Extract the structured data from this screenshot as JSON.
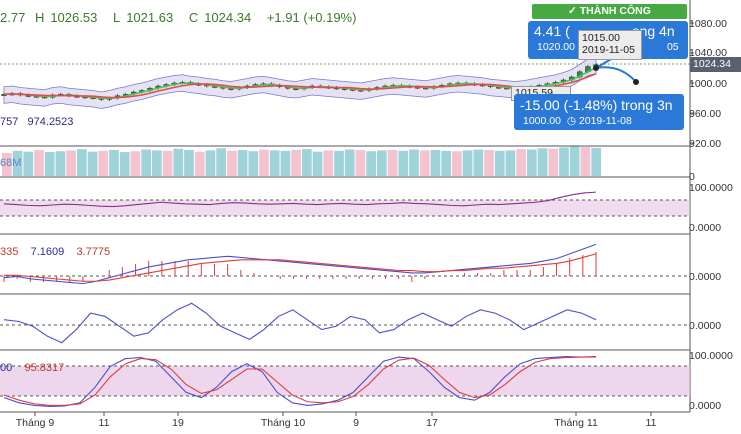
{
  "ohlc": {
    "open": "2.77",
    "high_label": "H",
    "high": "1026.53",
    "low_label": "L",
    "low": "1021.63",
    "close_label": "C",
    "close": "1024.34",
    "change": "+1.91 (+0.19%)"
  },
  "bb_legend": {
    "v1": "757",
    "v2": "974.2523"
  },
  "vol_legend": "68M",
  "macd_legend": {
    "v1": "335",
    "v2": "7.1609",
    "v3": "3.7775"
  },
  "stoch_legend": {
    "v1": "00",
    "v2": "95.8317"
  },
  "status_badge": "✓ THÀNH CÔNG",
  "projection_up": {
    "big": "4.41 (",
    "tail": "ong 4n",
    "price": "1020.00",
    "date_tail": "05"
  },
  "tooltip_top": {
    "price": "1015.00",
    "date": "2019-11-05"
  },
  "tooltip_mid": {
    "price": "1015.59"
  },
  "projection_down": {
    "big": "-15.00 (-1.48%) trong 3n",
    "price": "1000.00",
    "date": "2019-11-08"
  },
  "price_axis": [
    "1080.00",
    "1040.00",
    "1000.00",
    "960.00",
    "920.00"
  ],
  "last_price_tag": "1024.34",
  "volume_axis": [
    "0"
  ],
  "rsi_axis": [
    "100.0000",
    "0.0000"
  ],
  "macd_axis": [
    "0.0000"
  ],
  "cci_axis": [
    "0.0000"
  ],
  "stoch_axis": [
    "100.0000",
    "0.0000"
  ],
  "x_ticks": [
    "Tháng 9",
    "11",
    "19",
    "Tháng 10",
    "9",
    "17",
    "Tháng 11",
    "11"
  ],
  "colors": {
    "up": "#2e8b3a",
    "down": "#c0392b",
    "bb_fill": "#d9d6f0",
    "ma_green": "#4fc24f",
    "ma_red": "#e34b4b",
    "stoch_band": "#e7c4e4",
    "blue_line": "#4a4fd2",
    "red_line": "#e03c3c",
    "accent_blue": "#2a79d8"
  },
  "chart_data": {
    "type": "line",
    "title": "",
    "candles_close": [
      985,
      986,
      984,
      983,
      982,
      981,
      984,
      985,
      983,
      982,
      981,
      980,
      978,
      980,
      983,
      985,
      988,
      990,
      993,
      996,
      998,
      1000,
      1001,
      999,
      998,
      996,
      995,
      993,
      992,
      994,
      996,
      998,
      999,
      997,
      995,
      993,
      992,
      994,
      996,
      995,
      994,
      993,
      992,
      991,
      990,
      992,
      994,
      996,
      997,
      996,
      995,
      994,
      993,
      995,
      997,
      999,
      1000,
      999,
      998,
      997,
      995,
      994,
      993,
      992,
      993,
      995,
      997,
      999,
      1001,
      1004,
      1008,
      1015,
      1022,
      1024.34
    ],
    "volume": [
      55,
      60,
      58,
      62,
      57,
      59,
      61,
      64,
      58,
      60,
      62,
      57,
      59,
      63,
      61,
      60,
      65,
      62,
      58,
      61,
      66,
      60,
      62,
      59,
      63,
      61,
      60,
      62,
      64,
      58,
      61,
      60,
      63,
      62,
      59,
      61,
      62,
      60,
      63,
      61,
      62,
      60,
      59,
      61,
      63,
      62,
      60,
      61,
      64,
      63,
      66,
      65,
      68,
      70,
      69,
      67
    ],
    "rsi": [
      62,
      60,
      58,
      57,
      59,
      61,
      60,
      58,
      56,
      55,
      57,
      60,
      63,
      66,
      64,
      62,
      61,
      60,
      63,
      65,
      64,
      62,
      61,
      62,
      63,
      61,
      60,
      62,
      63,
      61,
      60,
      62,
      63,
      65,
      63,
      62,
      60,
      58,
      57,
      59,
      61,
      60,
      62,
      64,
      66,
      70,
      78,
      85,
      90,
      92
    ],
    "macd": [
      -8,
      -7,
      -9,
      -10,
      -11,
      -12,
      -13,
      -11,
      -8,
      -5,
      -2,
      1,
      3,
      5,
      7,
      8,
      9,
      10,
      9,
      8,
      7,
      6,
      5,
      4,
      3,
      2,
      1,
      0,
      -1,
      -2,
      -3,
      -4,
      -4,
      -3,
      -2,
      -1,
      0,
      1,
      2,
      3,
      4,
      6,
      8,
      12,
      16,
      20
    ],
    "macd_signal": [
      -6,
      -6,
      -7,
      -8,
      -9,
      -10,
      -11,
      -11,
      -10,
      -8,
      -6,
      -4,
      -2,
      0,
      2,
      4,
      5,
      6,
      7,
      7,
      7,
      7,
      6,
      5,
      4,
      3,
      2,
      1,
      0,
      -1,
      -2,
      -2,
      -3,
      -3,
      -2,
      -2,
      -1,
      0,
      0,
      1,
      2,
      3,
      4,
      6,
      9,
      12
    ],
    "cci": [
      10,
      5,
      -10,
      -40,
      -60,
      -20,
      30,
      20,
      -10,
      -40,
      -30,
      10,
      40,
      60,
      30,
      -10,
      -30,
      -50,
      -20,
      20,
      40,
      10,
      -20,
      -10,
      20,
      10,
      -30,
      -20,
      10,
      30,
      10,
      -10,
      20,
      40,
      30,
      10,
      -20,
      0,
      20,
      40,
      30,
      10
    ],
    "stoch_k": [
      20,
      10,
      5,
      3,
      4,
      10,
      40,
      80,
      95,
      97,
      90,
      60,
      30,
      20,
      40,
      70,
      85,
      70,
      30,
      10,
      5,
      8,
      15,
      30,
      60,
      90,
      98,
      95,
      70,
      40,
      20,
      15,
      30,
      60,
      85,
      95,
      97,
      99,
      98,
      99
    ],
    "stoch_d": [
      25,
      15,
      8,
      5,
      5,
      8,
      25,
      60,
      85,
      95,
      93,
      75,
      45,
      28,
      35,
      55,
      75,
      75,
      50,
      25,
      12,
      10,
      12,
      22,
      45,
      75,
      92,
      96,
      82,
      55,
      30,
      20,
      25,
      45,
      70,
      88,
      95,
      97,
      98,
      98
    ]
  }
}
